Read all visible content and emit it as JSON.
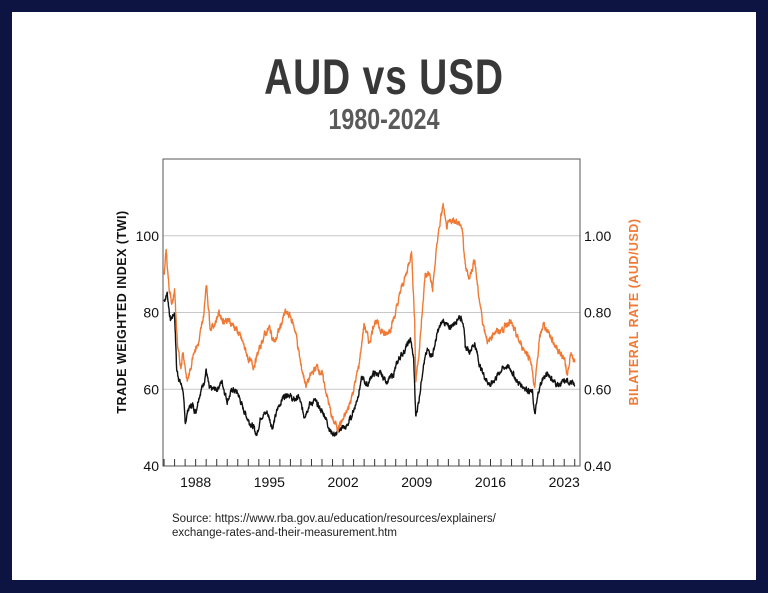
{
  "chart_data": {
    "type": "line",
    "title": "AUD vs USD",
    "subtitle": "1980-2024",
    "ylabel_left": "TRADE WEIGHTED INDEX (TWI)",
    "ylabel_right": "BILATERAL RATE (AUD/USD)",
    "xlim": [
      1984.9,
      2024.5
    ],
    "ylim_left": [
      40,
      120
    ],
    "ylim_right": [
      0.4,
      1.2
    ],
    "x_ticks": [
      "1988",
      "1995",
      "2002",
      "2009",
      "2016",
      "2023"
    ],
    "y_ticks_left": [
      "40",
      "60",
      "80",
      "100"
    ],
    "y_ticks_right": [
      "0.40",
      "0.60",
      "0.80",
      "1.00"
    ],
    "grid": true,
    "colors": {
      "twi": "#111111",
      "aud_usd": "#f07a35",
      "frame": "#0e1442"
    },
    "series": [
      {
        "key": "twi",
        "axis": "left",
        "x": [
          1985.0,
          1985.3,
          1985.6,
          1986.0,
          1986.2,
          1986.5,
          1986.8,
          1987.0,
          1987.3,
          1987.7,
          1988.0,
          1988.3,
          1988.8,
          1989.0,
          1989.3,
          1990.0,
          1990.5,
          1991.0,
          1991.5,
          1992.0,
          1992.5,
          1993.0,
          1993.5,
          1993.8,
          1994.2,
          1994.8,
          1995.3,
          1995.8,
          1996.3,
          1996.8,
          1997.3,
          1997.8,
          1998.3,
          1998.8,
          1999.3,
          1999.8,
          2000.3,
          2000.8,
          2001.3,
          2001.8,
          2002.3,
          2002.8,
          2003.3,
          2003.8,
          2004.3,
          2004.8,
          2005.5,
          2006.2,
          2006.8,
          2007.3,
          2007.8,
          2008.4,
          2008.7,
          2008.9,
          2009.2,
          2009.6,
          2010.0,
          2010.5,
          2011.0,
          2011.5,
          2012.0,
          2012.5,
          2013.0,
          2013.4,
          2013.6,
          2014.0,
          2014.5,
          2015.0,
          2015.5,
          2016.0,
          2016.5,
          2017.0,
          2017.5,
          2018.0,
          2018.5,
          2019.0,
          2019.5,
          2020.0,
          2020.2,
          2020.6,
          2021.0,
          2021.5,
          2022.0,
          2022.5,
          2023.0,
          2023.5,
          2024.0
        ],
        "y": [
          83,
          85,
          78,
          80,
          65,
          62,
          60,
          51,
          55,
          56,
          54,
          58,
          62,
          65,
          60,
          60,
          62,
          57,
          60,
          59,
          55,
          52,
          50,
          48,
          53,
          54,
          50,
          55,
          58,
          59,
          57,
          58,
          53,
          56,
          57,
          55,
          53,
          49,
          48,
          50,
          50,
          53,
          57,
          63,
          61,
          64,
          64,
          62,
          64,
          68,
          70,
          73,
          68,
          53,
          57,
          66,
          70,
          69,
          75,
          78,
          76,
          77,
          79,
          78,
          71,
          70,
          72,
          66,
          63,
          61,
          63,
          65,
          66,
          65,
          62,
          61,
          60,
          59,
          53,
          60,
          63,
          64,
          62,
          61,
          62,
          62,
          61
        ]
      },
      {
        "key": "aud_usd",
        "axis": "right",
        "x": [
          1985.0,
          1985.2,
          1985.5,
          1985.8,
          1986.0,
          1986.3,
          1986.6,
          1986.8,
          1987.2,
          1987.5,
          1987.8,
          1988.3,
          1988.8,
          1989.0,
          1989.4,
          1989.8,
          1990.2,
          1990.6,
          1991.0,
          1991.5,
          1992.0,
          1992.5,
          1993.0,
          1993.5,
          1994.0,
          1994.5,
          1995.0,
          1995.5,
          1996.0,
          1996.5,
          1997.0,
          1997.5,
          1998.0,
          1998.5,
          1999.0,
          1999.5,
          2000.0,
          2000.5,
          2001.0,
          2001.5,
          2002.0,
          2002.5,
          2003.0,
          2003.5,
          2004.0,
          2004.5,
          2005.0,
          2005.5,
          2006.0,
          2006.5,
          2007.0,
          2007.5,
          2008.0,
          2008.5,
          2008.8,
          2008.9,
          2009.3,
          2009.8,
          2010.2,
          2010.5,
          2011.0,
          2011.5,
          2011.8,
          2012.3,
          2012.8,
          2013.3,
          2013.6,
          2014.0,
          2014.5,
          2014.8,
          2015.3,
          2015.8,
          2016.3,
          2016.8,
          2017.3,
          2017.8,
          2018.3,
          2018.8,
          2019.3,
          2019.8,
          2020.2,
          2020.6,
          2021.0,
          2021.5,
          2022.0,
          2022.5,
          2023.0,
          2023.3,
          2023.6,
          2024.0
        ],
        "y": [
          0.9,
          0.96,
          0.86,
          0.82,
          0.86,
          0.7,
          0.66,
          0.7,
          0.62,
          0.65,
          0.7,
          0.72,
          0.8,
          0.88,
          0.76,
          0.77,
          0.8,
          0.78,
          0.78,
          0.77,
          0.75,
          0.72,
          0.68,
          0.66,
          0.7,
          0.74,
          0.76,
          0.72,
          0.76,
          0.8,
          0.79,
          0.75,
          0.66,
          0.61,
          0.64,
          0.66,
          0.64,
          0.58,
          0.52,
          0.5,
          0.52,
          0.55,
          0.6,
          0.66,
          0.77,
          0.72,
          0.78,
          0.76,
          0.74,
          0.76,
          0.8,
          0.86,
          0.9,
          0.96,
          0.78,
          0.62,
          0.72,
          0.9,
          0.9,
          0.86,
          1.0,
          1.08,
          1.02,
          1.04,
          1.04,
          1.02,
          0.92,
          0.89,
          0.94,
          0.86,
          0.77,
          0.72,
          0.75,
          0.75,
          0.76,
          0.78,
          0.75,
          0.72,
          0.7,
          0.68,
          0.6,
          0.72,
          0.77,
          0.75,
          0.72,
          0.7,
          0.68,
          0.64,
          0.69,
          0.67
        ]
      }
    ]
  },
  "source": {
    "line1": "Source: https://www.rba.gov.au/education/resources/explainers/",
    "line2": "exchange-rates-and-their-measurement.htm"
  }
}
